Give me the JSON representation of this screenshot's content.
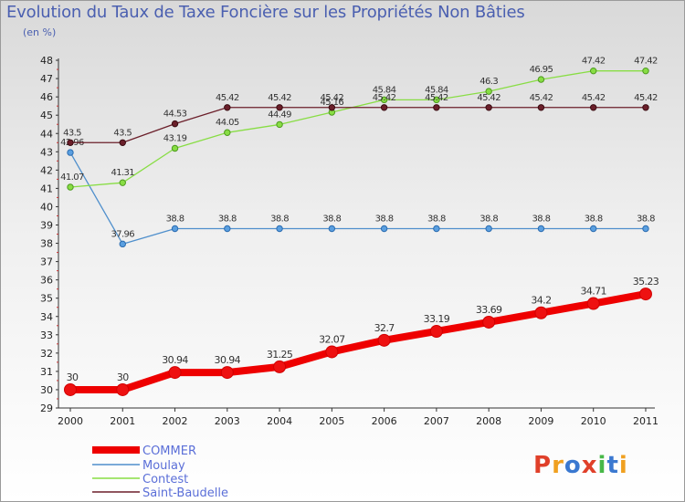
{
  "chart_data": {
    "type": "line",
    "title": "Evolution du Taux de Taxe Foncière sur les Propriétés Non Bâties",
    "ylabel": "(en %)",
    "xlabel": "",
    "x": [
      "2000",
      "2001",
      "2002",
      "2003",
      "2004",
      "2005",
      "2006",
      "2007",
      "2008",
      "2009",
      "2010",
      "2011"
    ],
    "ylim": [
      29,
      48
    ],
    "yticks": [
      "29",
      "30",
      "31",
      "32",
      "33",
      "34",
      "35",
      "36",
      "37",
      "38",
      "39",
      "40",
      "41",
      "42",
      "43",
      "44",
      "45",
      "46",
      "47",
      "48"
    ],
    "grid": false,
    "series": [
      {
        "name": "COMMER",
        "color": "#ee0000",
        "values": [
          30,
          30,
          30.94,
          30.94,
          31.25,
          32.07,
          32.7,
          33.19,
          33.69,
          34.2,
          34.71,
          35.23
        ],
        "labels": [
          "30",
          "30",
          "30.94",
          "30.94",
          "31.25",
          "32.07",
          "32.7",
          "33.19",
          "33.69",
          "34.2",
          "34.71",
          "35.23"
        ]
      },
      {
        "name": "Moulay",
        "color": "#4f8fcc",
        "values": [
          42.96,
          37.96,
          38.8,
          38.8,
          38.8,
          38.8,
          38.8,
          38.8,
          38.8,
          38.8,
          38.8,
          38.8
        ],
        "labels": [
          "42.96",
          "37.96",
          "38.8",
          "38.8",
          "38.8",
          "38.8",
          "38.8",
          "38.8",
          "38.8",
          "38.8",
          "38.8",
          "38.8"
        ]
      },
      {
        "name": "Contest",
        "color": "#88dd44",
        "values": [
          41.07,
          41.31,
          43.19,
          44.05,
          44.49,
          45.16,
          45.84,
          45.84,
          46.3,
          46.95,
          47.42,
          47.42
        ],
        "labels": [
          "41.07",
          "41.31",
          "43.19",
          "44.05",
          "44.49",
          "45.16",
          "45.84",
          "45.84",
          "46.3",
          "46.95",
          "47.42",
          "47.42"
        ]
      },
      {
        "name": "Saint-Baudelle",
        "color": "#6b1f2a",
        "values": [
          43.5,
          43.5,
          44.53,
          45.42,
          45.42,
          45.42,
          45.42,
          45.42,
          45.42,
          45.42,
          45.42,
          45.42
        ],
        "labels": [
          "43.5",
          "43.5",
          "44.53",
          "45.42",
          "45.42",
          "45.42",
          "45.42",
          "45.42",
          "45.42",
          "45.42",
          "45.42",
          "45.42"
        ]
      }
    ],
    "legend": [
      "COMMER",
      "Moulay",
      "Contest",
      "Saint-Baudelle"
    ],
    "legend_position": "bottom-left"
  },
  "logo": {
    "text": "Proxiti"
  }
}
